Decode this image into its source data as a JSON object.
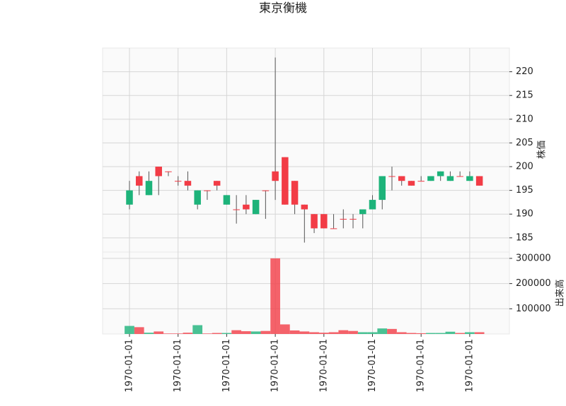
{
  "chart_data": {
    "type": "candlestick",
    "title": "東京衡機",
    "categories": [
      "1970-01-01",
      null,
      null,
      null,
      null,
      "1970-01-01",
      null,
      null,
      null,
      null,
      "1970-01-01",
      null,
      null,
      null,
      null,
      "1970-01-01",
      null,
      null,
      null,
      null,
      "1970-01-01",
      null,
      null,
      null,
      null,
      "1970-01-01",
      null,
      null,
      null,
      null,
      "1970-01-01",
      null,
      null,
      null,
      null,
      "1970-01-01",
      null
    ],
    "open": [
      192,
      198,
      194,
      200,
      199,
      197,
      197,
      192,
      195,
      197,
      192,
      191,
      192,
      190,
      195,
      199,
      202,
      197,
      192,
      190,
      190,
      187,
      189,
      189,
      190,
      191,
      193,
      198,
      198,
      197,
      197,
      197,
      198,
      197,
      198,
      197,
      198
    ],
    "high": [
      197,
      199,
      199,
      200,
      199,
      198,
      199,
      195,
      195,
      197,
      194,
      194,
      194,
      193,
      195,
      223,
      202,
      197,
      192,
      190,
      190,
      190,
      191,
      190,
      191,
      194,
      198,
      200,
      198,
      197,
      198,
      198,
      199,
      199,
      199,
      199,
      198
    ],
    "low": [
      191,
      194,
      194,
      194,
      198,
      196,
      195,
      191,
      193,
      195,
      192,
      188,
      190,
      190,
      189,
      193,
      192,
      190,
      184,
      186,
      187,
      187,
      187,
      187,
      187,
      191,
      191,
      195,
      196,
      196,
      197,
      197,
      197,
      197,
      198,
      197,
      196
    ],
    "close": [
      195,
      196,
      197,
      198,
      199,
      197,
      196,
      195,
      195,
      196,
      194,
      191,
      191,
      193,
      195,
      197,
      192,
      192,
      191,
      187,
      187,
      187,
      189,
      189,
      191,
      193,
      198,
      198,
      197,
      196,
      197,
      198,
      199,
      198,
      198,
      198,
      196
    ],
    "volume": [
      32000,
      27000,
      5000,
      10000,
      2000,
      2000,
      5000,
      35000,
      2000,
      4000,
      4000,
      15000,
      11000,
      10000,
      12000,
      300000,
      38000,
      14000,
      10000,
      7000,
      5000,
      7000,
      15000,
      12000,
      7000,
      7000,
      22000,
      20000,
      7000,
      4000,
      3000,
      4000,
      4000,
      9000,
      4000,
      7000,
      7000
    ],
    "up_color": "#1db37a",
    "down_color": "#f23c46",
    "ylabel": "株価",
    "ylim": [
      182,
      225
    ],
    "yticks": [
      185,
      190,
      195,
      200,
      205,
      210,
      215,
      220
    ],
    "volume_label": "出来高",
    "volume_ylim": [
      0,
      325000
    ],
    "volume_yticks": [
      100000,
      200000,
      300000
    ],
    "grid": true
  }
}
